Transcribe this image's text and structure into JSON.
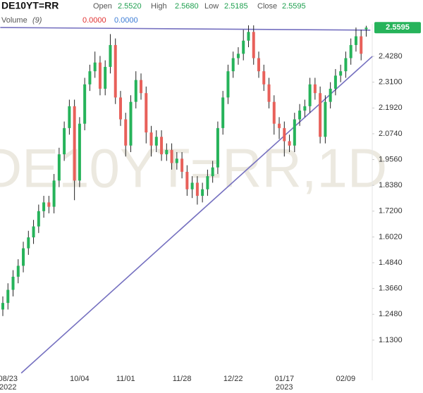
{
  "chart_data": {
    "type": "candlestick",
    "title": "DE10YT=RR",
    "watermark": "DE10YT=RR,1D",
    "header": [
      {
        "label": "Open",
        "value": "2.5520"
      },
      {
        "label": "High",
        "value": "2.5680"
      },
      {
        "label": "Low",
        "value": "2.5185"
      },
      {
        "label": "Close",
        "value": "2.5595"
      }
    ],
    "volume_label": "Volume",
    "volume_param": "(9)",
    "volume_values": [
      {
        "text": "0.0000",
        "color": "#e03030"
      },
      {
        "text": "0.0000",
        "color": "#3a7bd5"
      }
    ],
    "last_price": {
      "value": 2.5595,
      "label": "2.5595"
    },
    "up_color": "#26b35a",
    "down_color": "#e8605a",
    "wick_color": "#222222",
    "trendline_color": "#7570c0",
    "categories": [
      null,
      "08/23",
      null,
      null,
      null,
      null,
      null,
      null,
      null,
      null,
      null,
      null,
      null,
      null,
      null,
      "10/04",
      null,
      null,
      null,
      null,
      null,
      null,
      null,
      null,
      "11/01",
      null,
      null,
      null,
      null,
      null,
      null,
      null,
      null,
      null,
      null,
      "11/28",
      null,
      null,
      null,
      null,
      null,
      null,
      null,
      null,
      null,
      "12/22",
      null,
      null,
      null,
      null,
      null,
      null,
      null,
      null,
      null,
      "01/17",
      null,
      null,
      null,
      null,
      null,
      null,
      null,
      null,
      null,
      null,
      null,
      "02/09",
      null,
      null,
      null,
      null
    ],
    "years": [
      null,
      "2022",
      null,
      null,
      null,
      null,
      null,
      null,
      null,
      null,
      null,
      null,
      null,
      null,
      null,
      null,
      null,
      null,
      null,
      null,
      null,
      null,
      null,
      null,
      null,
      null,
      null,
      null,
      null,
      null,
      null,
      null,
      null,
      null,
      null,
      null,
      null,
      null,
      null,
      null,
      null,
      null,
      null,
      null,
      null,
      null,
      null,
      null,
      null,
      null,
      null,
      null,
      null,
      null,
      null,
      "2023",
      null,
      null,
      null,
      null,
      null,
      null,
      null,
      null,
      null,
      null,
      null,
      null,
      null,
      null,
      null,
      null
    ],
    "open": [
      1.27,
      1.3,
      1.36,
      1.42,
      1.47,
      1.55,
      1.6,
      1.65,
      1.72,
      1.76,
      1.74,
      1.86,
      1.98,
      2.1,
      2.2,
      1.86,
      2.12,
      2.3,
      2.36,
      2.4,
      2.28,
      2.38,
      2.48,
      2.24,
      2.14,
      2.02,
      2.22,
      2.32,
      2.26,
      2.08,
      2.02,
      2.06,
      1.98,
      2.0,
      1.94,
      1.96,
      1.9,
      1.82,
      1.85,
      1.79,
      1.82,
      1.88,
      1.92,
      2.1,
      2.24,
      2.36,
      2.42,
      2.44,
      2.5,
      2.54,
      2.42,
      2.36,
      2.3,
      2.22,
      2.12,
      2.1,
      2.04,
      2.02,
      2.14,
      2.18,
      2.2,
      2.3,
      2.26,
      2.06,
      2.22,
      2.28,
      2.34,
      2.36,
      2.42,
      2.48,
      2.52,
      2.552
    ],
    "high": [
      1.33,
      1.39,
      1.45,
      1.5,
      1.58,
      1.63,
      1.68,
      1.75,
      1.79,
      1.79,
      1.89,
      2.01,
      2.13,
      2.23,
      2.23,
      2.15,
      2.33,
      2.39,
      2.45,
      2.43,
      2.41,
      2.53,
      2.51,
      2.27,
      2.17,
      2.25,
      2.36,
      2.35,
      2.29,
      2.11,
      2.09,
      2.09,
      2.03,
      2.03,
      1.99,
      1.99,
      1.93,
      1.88,
      1.88,
      1.85,
      1.91,
      1.95,
      2.13,
      2.27,
      2.39,
      2.45,
      2.47,
      2.55,
      2.57,
      2.57,
      2.45,
      2.39,
      2.33,
      2.25,
      2.15,
      2.13,
      2.07,
      2.17,
      2.21,
      2.23,
      2.33,
      2.33,
      2.29,
      2.25,
      2.31,
      2.37,
      2.39,
      2.45,
      2.51,
      2.56,
      2.55,
      2.568
    ],
    "low": [
      1.24,
      1.27,
      1.33,
      1.39,
      1.44,
      1.52,
      1.57,
      1.62,
      1.69,
      1.71,
      1.71,
      1.83,
      1.95,
      2.07,
      1.77,
      1.83,
      2.09,
      2.27,
      2.33,
      2.25,
      2.25,
      2.35,
      2.21,
      2.11,
      1.97,
      1.99,
      2.19,
      2.23,
      2.03,
      1.97,
      1.99,
      1.95,
      1.95,
      1.91,
      1.91,
      1.87,
      1.79,
      1.78,
      1.75,
      1.76,
      1.79,
      1.85,
      1.89,
      2.07,
      2.21,
      2.33,
      2.39,
      2.41,
      2.47,
      2.39,
      2.33,
      2.27,
      2.19,
      2.07,
      2.05,
      1.97,
      1.99,
      1.99,
      2.11,
      2.15,
      2.17,
      2.23,
      2.03,
      2.03,
      2.19,
      2.25,
      2.31,
      2.33,
      2.39,
      2.45,
      2.41,
      2.5185
    ],
    "close": [
      1.3,
      1.36,
      1.42,
      1.47,
      1.55,
      1.6,
      1.65,
      1.72,
      1.76,
      1.74,
      1.86,
      1.98,
      2.1,
      2.2,
      1.86,
      2.12,
      2.3,
      2.36,
      2.4,
      2.28,
      2.38,
      2.48,
      2.24,
      2.14,
      2.02,
      2.22,
      2.32,
      2.26,
      2.08,
      2.02,
      2.06,
      1.98,
      2.0,
      1.94,
      1.96,
      1.9,
      1.82,
      1.85,
      1.79,
      1.82,
      1.88,
      1.92,
      2.1,
      2.24,
      2.36,
      2.42,
      2.44,
      2.5,
      2.54,
      2.42,
      2.36,
      2.3,
      2.22,
      2.12,
      2.1,
      2.04,
      2.02,
      2.14,
      2.18,
      2.2,
      2.3,
      2.26,
      2.06,
      2.22,
      2.28,
      2.34,
      2.36,
      2.42,
      2.48,
      2.52,
      2.44,
      2.5595
    ],
    "trendlines": [
      [
        [
          -0.5,
          2.56
        ],
        [
          71.8,
          2.548
        ]
      ],
      [
        [
          3.6,
          0.979
        ],
        [
          72.2,
          2.428
        ]
      ]
    ],
    "ylim": [
      0.946,
      2.57
    ],
    "yticks": [
      {
        "value": 1.13,
        "label": "1.1300"
      },
      {
        "value": 1.248,
        "label": "1.2480"
      },
      {
        "value": 1.366,
        "label": "1.3660"
      },
      {
        "value": 1.484,
        "label": "1.4840"
      },
      {
        "value": 1.602,
        "label": "1.6020"
      },
      {
        "value": 1.72,
        "label": "1.7200"
      },
      {
        "value": 1.838,
        "label": "1.8380"
      },
      {
        "value": 1.956,
        "label": "1.9560"
      },
      {
        "value": 2.074,
        "label": "2.0740"
      },
      {
        "value": 2.192,
        "label": "2.1920"
      },
      {
        "value": 2.31,
        "label": "2.3100"
      },
      {
        "value": 2.428,
        "label": "2.4280"
      }
    ]
  }
}
